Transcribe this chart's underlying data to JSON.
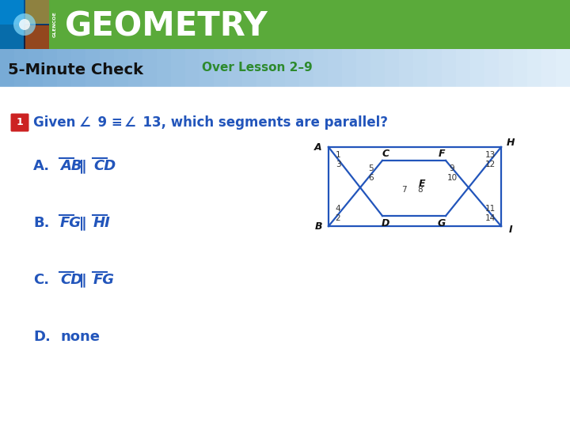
{
  "title": "GEOMETRY",
  "subtitle": "5-Minute Check",
  "over_lesson": "Over Lesson 2–9",
  "header_green_dark": "#3d7a2a",
  "header_green_light": "#5aaa3a",
  "subheader_gradient_left": "#7ab8d8",
  "subheader_gradient_right": "#ddeef8",
  "content_bg": "#ffffff",
  "answer_color": "#2255bb",
  "q_num_bg": "#cc2222",
  "q_num_color": "#ffffff",
  "diagram_color": "#2255bb",
  "text_dark": "#111111",
  "green_label": "#2d8a2d",
  "fig_width": 7.2,
  "fig_height": 5.4,
  "answers": [
    {
      "label": "A.",
      "s1": "AB",
      "s2": "CD"
    },
    {
      "label": "B.",
      "s1": "FG",
      "s2": "HI"
    },
    {
      "label": "C.",
      "s1": "CD",
      "s2": "FG"
    },
    {
      "label": "D.",
      "s1": null,
      "s2": null,
      "text": "none"
    }
  ]
}
